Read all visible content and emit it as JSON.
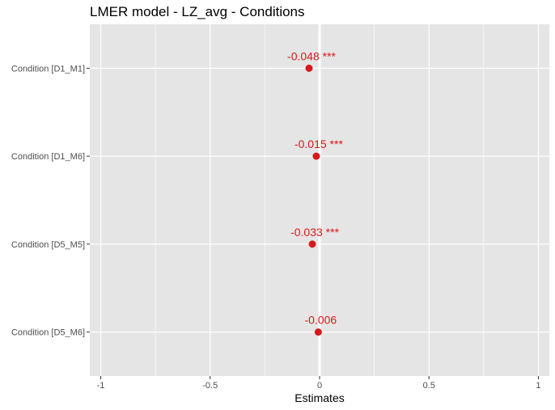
{
  "chart_data": {
    "type": "scatter",
    "title": "LMER model - LZ_avg - Conditions",
    "xlabel": "Estimates",
    "ylabel": "",
    "xlim": [
      -1.05,
      1.05
    ],
    "x_ticks": [
      -1,
      -0.5,
      0,
      0.5,
      1
    ],
    "x_tick_labels": [
      "-1",
      "-0.5",
      "0",
      "0.5",
      "1"
    ],
    "x_minor_ticks": [
      -0.75,
      -0.25,
      0.25,
      0.75
    ],
    "grid": true,
    "categories": [
      "Condition [D1_M1]",
      "Condition [D1_M6]",
      "Condition [D5_M5]",
      "Condition [D5_M6]"
    ],
    "values": [
      -0.048,
      -0.015,
      -0.033,
      -0.006
    ],
    "labels": [
      "-0.048 ***",
      "-0.015 ***",
      "-0.033 ***",
      "-0.006"
    ],
    "reference_line_x": 0,
    "point_color": "#d7191c",
    "panel_background": "#e5e5e5",
    "grid_color": "#ffffff"
  }
}
